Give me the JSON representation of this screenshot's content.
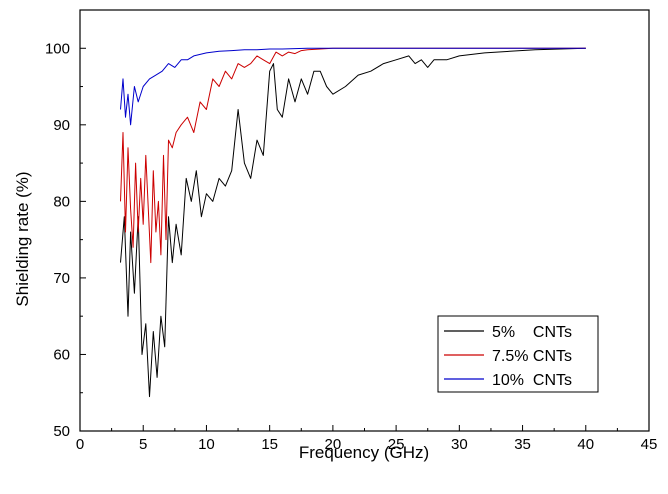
{
  "chart_data": {
    "type": "line",
    "title": "",
    "xlabel": "Frequency (GHz)",
    "ylabel": "Shielding rate (%)",
    "xlim": [
      0,
      45
    ],
    "ylim": [
      50,
      105
    ],
    "xticks": [
      0,
      5,
      10,
      15,
      20,
      25,
      30,
      35,
      40,
      45
    ],
    "yticks": [
      50,
      60,
      70,
      80,
      90,
      100
    ],
    "grid": false,
    "legend_position": "bottom-right",
    "series": [
      {
        "name": "5%    CNTs",
        "color": "#000000",
        "x": [
          3.2,
          3.5,
          3.8,
          4.0,
          4.3,
          4.6,
          4.9,
          5.2,
          5.5,
          5.8,
          6.1,
          6.4,
          6.7,
          7.0,
          7.3,
          7.6,
          8.0,
          8.4,
          8.8,
          9.2,
          9.6,
          10.0,
          10.5,
          11.0,
          11.5,
          12.0,
          12.5,
          13.0,
          13.5,
          14.0,
          14.5,
          15.0,
          15.3,
          15.6,
          16.0,
          16.5,
          17.0,
          17.5,
          18.0,
          18.5,
          19.0,
          19.5,
          20.0,
          21.0,
          22.0,
          23.0,
          24.0,
          25.0,
          26.0,
          26.5,
          27.0,
          27.5,
          28.0,
          29.0,
          30.0,
          32.0,
          34.0,
          36.0,
          38.0,
          40.0
        ],
        "y": [
          72,
          78,
          65,
          76,
          68,
          78,
          60,
          64,
          54.5,
          63,
          57,
          65,
          61,
          78,
          72,
          77,
          73,
          83,
          80,
          84,
          78,
          81,
          80,
          83,
          82,
          84,
          92,
          85,
          83,
          88,
          86,
          97,
          98,
          92,
          91,
          96,
          93,
          96,
          94,
          97,
          97,
          95,
          94,
          95,
          96.5,
          97,
          98,
          98.5,
          99,
          98,
          98.5,
          97.5,
          98.5,
          98.5,
          99,
          99.4,
          99.6,
          99.8,
          99.9,
          100
        ]
      },
      {
        "name": "7.5% CNTs",
        "color": "#cc0000",
        "x": [
          3.2,
          3.4,
          3.6,
          3.8,
          4.0,
          4.2,
          4.4,
          4.6,
          4.8,
          5.0,
          5.2,
          5.4,
          5.6,
          5.8,
          6.0,
          6.2,
          6.4,
          6.6,
          6.8,
          7.0,
          7.3,
          7.6,
          8.0,
          8.5,
          9.0,
          9.5,
          10.0,
          10.5,
          11.0,
          11.5,
          12.0,
          12.5,
          13.0,
          13.5,
          14.0,
          14.5,
          15.0,
          15.5,
          16.0,
          16.5,
          17.0,
          17.5,
          18.0,
          19.0,
          20.0,
          22.0,
          24.0,
          26.0,
          28.0,
          30.0,
          35.0,
          40.0
        ],
        "y": [
          80,
          89,
          76,
          87,
          79,
          74,
          85,
          76,
          83,
          77,
          86,
          79,
          72,
          84,
          76,
          80,
          73,
          86,
          75,
          88,
          87,
          89,
          90,
          91,
          89,
          93,
          92,
          96,
          95,
          97,
          96,
          98,
          97.5,
          98,
          99,
          98.5,
          98,
          99.5,
          99,
          99.5,
          99.3,
          99.7,
          99.8,
          99.9,
          100,
          100,
          100,
          100,
          100,
          100,
          100,
          100
        ]
      },
      {
        "name": "10%  CNTs",
        "color": "#0000cc",
        "x": [
          3.2,
          3.4,
          3.6,
          3.8,
          4.0,
          4.3,
          4.6,
          5.0,
          5.5,
          6.0,
          6.5,
          7.0,
          7.5,
          8.0,
          8.5,
          9.0,
          10.0,
          11.0,
          12.0,
          13.0,
          14.0,
          15.0,
          16.0,
          18.0,
          20.0,
          25.0,
          30.0,
          35.0,
          40.0
        ],
        "y": [
          92,
          96,
          91,
          94,
          90,
          95,
          93,
          95,
          96,
          96.5,
          97,
          98,
          97.5,
          98.5,
          98.5,
          99,
          99.4,
          99.6,
          99.7,
          99.8,
          99.8,
          99.9,
          99.9,
          100,
          100,
          100,
          100,
          100,
          100
        ]
      }
    ]
  }
}
